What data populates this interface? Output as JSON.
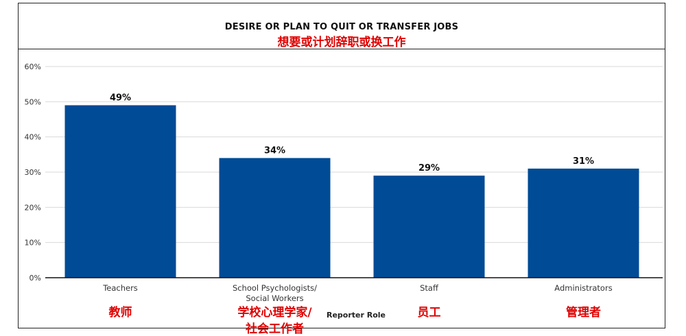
{
  "chart_data": {
    "type": "bar",
    "title": "DESIRE OR PLAN TO QUIT OR TRANSFER JOBS",
    "subtitle": "想要或计划辞职或换工作",
    "categories": [
      "Teachers",
      "School Psychologists/\nSocial Workers",
      "Staff",
      "Administrators"
    ],
    "categories_cn": [
      "教师",
      "学校心理学家/\n社会工作者",
      "员工",
      "管理者"
    ],
    "values": [
      49,
      34,
      29,
      31
    ],
    "data_labels": [
      "49%",
      "34%",
      "29%",
      "31%"
    ],
    "xlabel": "Reporter Role",
    "ylabel": "",
    "ylim": [
      0,
      60
    ],
    "yticks": [
      0,
      10,
      20,
      30,
      40,
      50,
      60
    ],
    "ytick_labels": [
      "0%",
      "10%",
      "20%",
      "30%",
      "40%",
      "50%",
      "60%"
    ],
    "grid": true,
    "bar_color": "#004b96"
  }
}
